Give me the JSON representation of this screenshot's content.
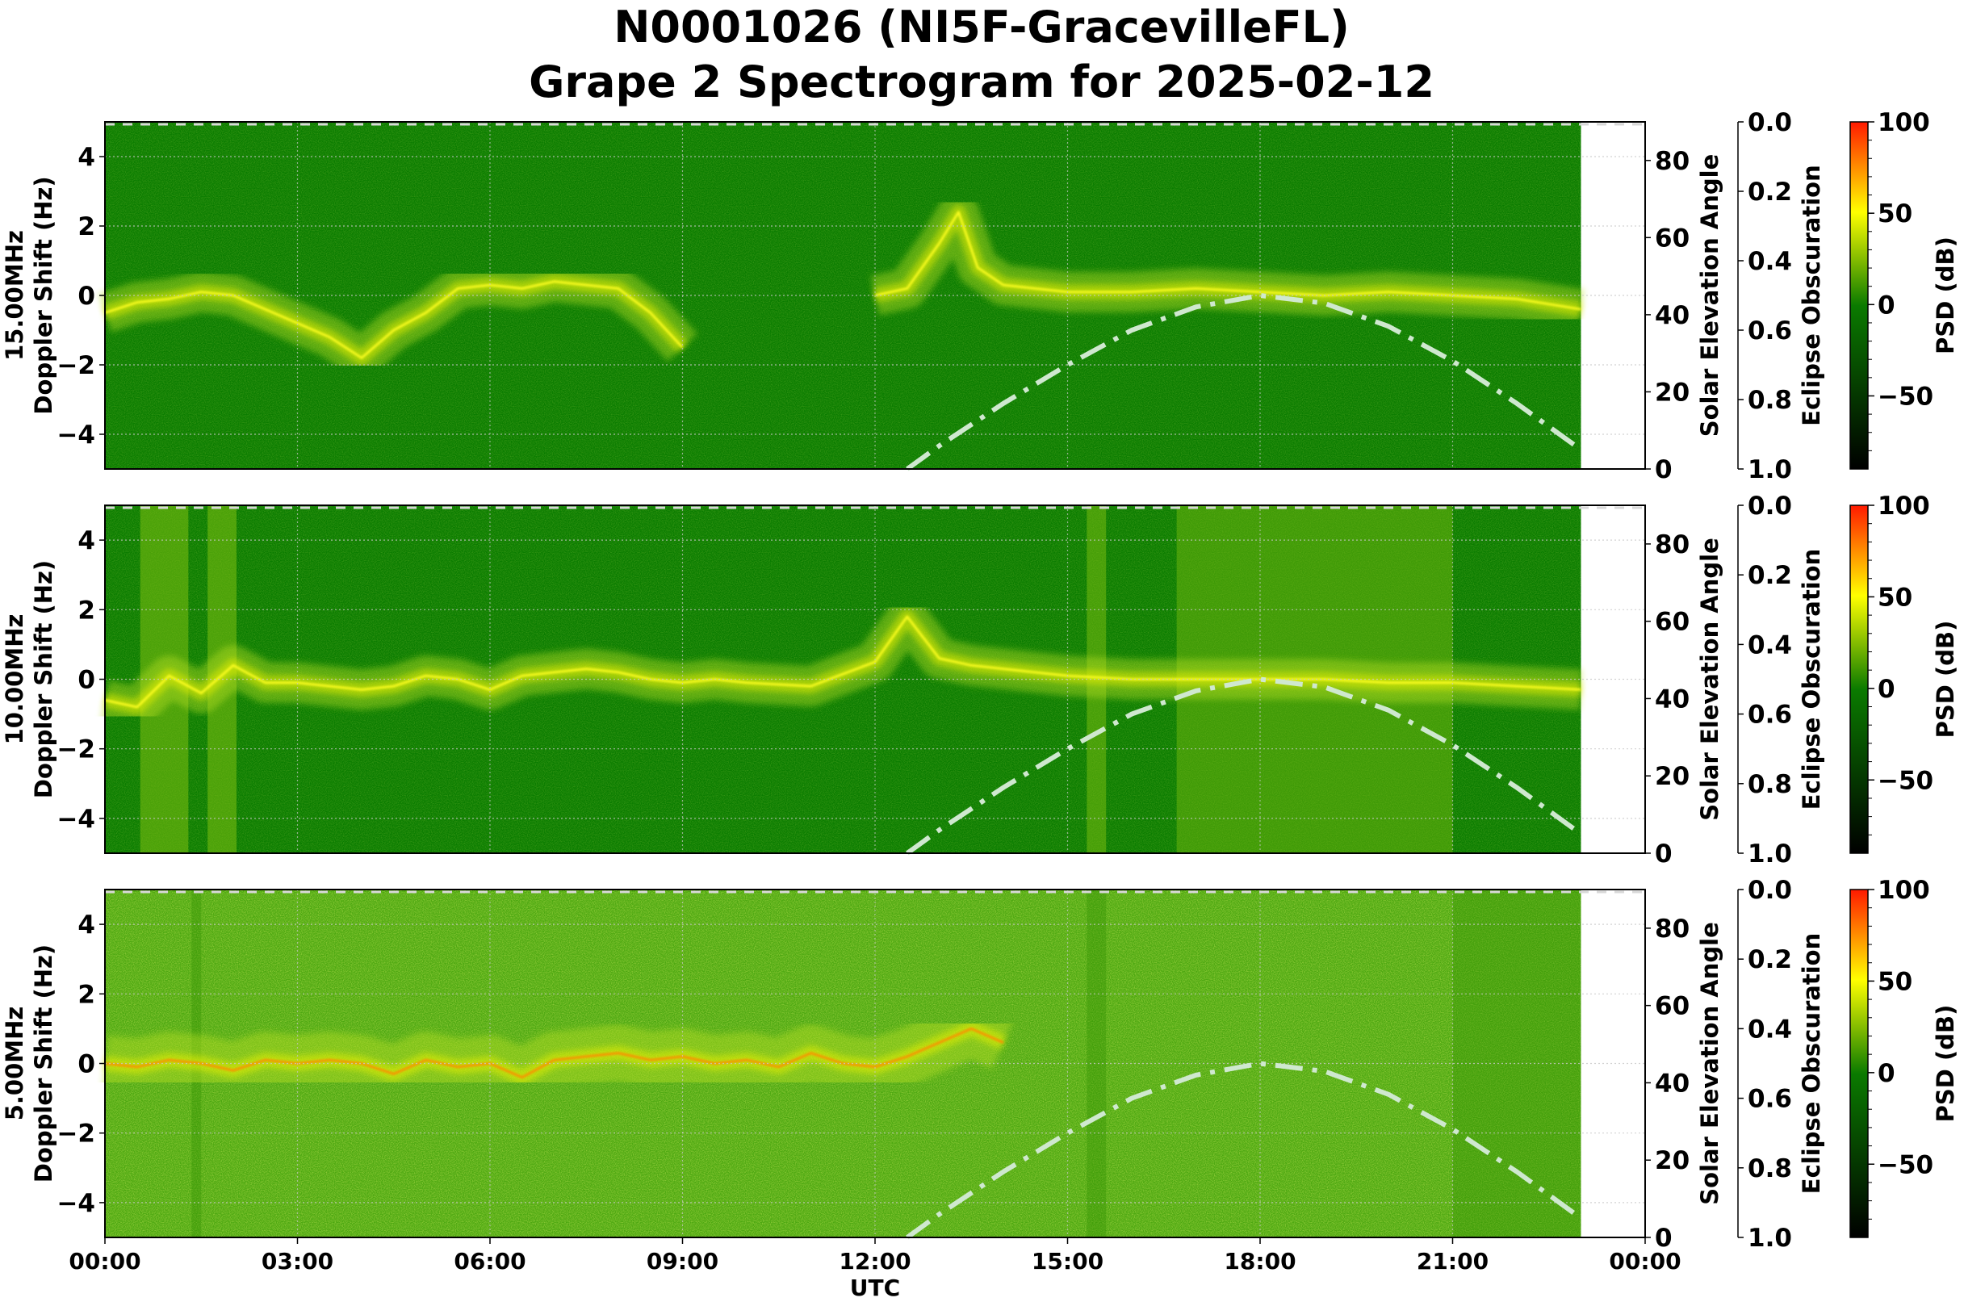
{
  "figure": {
    "title_line1": "N0001026 (NI5F-GracevilleFL)",
    "title_line2": "Grape 2 Spectrogram for 2025-02-12",
    "xlabel": "UTC",
    "x_ticks": [
      "00:00",
      "03:00",
      "06:00",
      "09:00",
      "12:00",
      "15:00",
      "18:00",
      "21:00",
      "00:00"
    ],
    "doppler_ticks": [
      "4",
      "2",
      "0",
      "−2",
      "−4"
    ],
    "solar_ticks": [
      "80",
      "60",
      "40",
      "20",
      "0"
    ],
    "solar_label": "Solar Elevation Angle",
    "eclipse_ticks": [
      "0.0",
      "0.2",
      "0.4",
      "0.6",
      "0.8",
      "1.0"
    ],
    "eclipse_label": "Eclipse Obscuration",
    "colorbar_ticks": [
      "100",
      "50",
      "0",
      "−50"
    ],
    "colorbar_label": "PSD (dB)",
    "colors": {
      "bg_green": "#0a7a00",
      "noise_green": "#4ea80e",
      "yellow": "#ffff00",
      "red": "#ff2000",
      "solar_curve": "#cfe8cf"
    }
  },
  "panels": [
    {
      "freq_label": "15.00MHz",
      "ylabel": "Doppler Shift (Hz)"
    },
    {
      "freq_label": "10.00MHz",
      "ylabel": "Doppler Shift (Hz)"
    },
    {
      "freq_label": "5.00MHz",
      "ylabel": "Doppler Shift (Hz)"
    }
  ],
  "chart_data": {
    "type": "heatmap",
    "title": "N0001026 (NI5F-GracevilleFL) Grape 2 Spectrogram for 2025-02-12",
    "xlabel": "UTC",
    "x_range_hours": [
      0,
      24
    ],
    "x_ticks": [
      "00:00",
      "03:00",
      "06:00",
      "09:00",
      "12:00",
      "15:00",
      "18:00",
      "21:00",
      "00:00"
    ],
    "data_end_hour": 23.0,
    "subplots": [
      {
        "frequency": "15.00MHz",
        "ylabel": "Doppler Shift (Hz)",
        "ylim": [
          -5,
          5
        ],
        "y_ticks": [
          -4,
          -2,
          0,
          2,
          4
        ],
        "trace_hours": [
          0,
          0.5,
          1,
          1.5,
          2,
          2.5,
          3,
          3.5,
          4,
          4.5,
          5,
          5.5,
          6,
          6.5,
          7,
          7.5,
          8,
          8.5,
          9,
          9.5,
          10,
          11,
          12,
          12.5,
          13,
          13.3,
          13.6,
          14,
          15,
          16,
          17,
          18,
          19,
          20,
          21,
          22,
          23
        ],
        "trace_doppler": [
          -0.5,
          -0.2,
          -0.1,
          0.1,
          0.0,
          -0.4,
          -0.8,
          -1.2,
          -1.8,
          -1.0,
          -0.5,
          0.2,
          0.3,
          0.2,
          0.4,
          0.3,
          0.2,
          -0.5,
          -1.5,
          null,
          null,
          null,
          0.0,
          0.2,
          1.5,
          2.4,
          0.8,
          0.3,
          0.1,
          0.1,
          0.2,
          0.1,
          0.0,
          0.1,
          0.0,
          -0.1,
          -0.4
        ]
      },
      {
        "frequency": "10.00MHz",
        "ylabel": "Doppler Shift (Hz)",
        "ylim": [
          -5,
          5
        ],
        "y_ticks": [
          -4,
          -2,
          0,
          2,
          4
        ],
        "trace_hours": [
          0,
          0.5,
          1,
          1.5,
          2,
          2.5,
          3,
          3.5,
          4,
          4.5,
          5,
          5.5,
          6,
          6.5,
          7,
          7.5,
          8,
          8.5,
          9,
          9.5,
          10,
          11,
          12,
          12.5,
          13,
          13.5,
          14,
          15,
          16,
          17,
          18,
          19,
          20,
          21,
          22,
          23
        ],
        "trace_doppler": [
          -0.6,
          -0.8,
          0.1,
          -0.4,
          0.4,
          -0.1,
          -0.1,
          -0.2,
          -0.3,
          -0.2,
          0.1,
          0.0,
          -0.3,
          0.1,
          0.2,
          0.3,
          0.2,
          0.0,
          -0.1,
          0.0,
          -0.1,
          -0.2,
          0.5,
          1.8,
          0.6,
          0.4,
          0.3,
          0.1,
          0.0,
          0.0,
          0.0,
          0.0,
          -0.1,
          -0.1,
          -0.2,
          -0.3
        ]
      },
      {
        "frequency": "5.00MHz",
        "ylabel": "Doppler Shift (Hz)",
        "ylim": [
          -5,
          5
        ],
        "y_ticks": [
          -4,
          -2,
          0,
          2,
          4
        ],
        "trace_hours": [
          0,
          0.5,
          1,
          1.5,
          2,
          2.5,
          3,
          3.5,
          4,
          4.5,
          5,
          5.5,
          6,
          6.5,
          7,
          7.5,
          8,
          8.5,
          9,
          9.5,
          10,
          10.5,
          11,
          11.5,
          12,
          12.5,
          13,
          13.5,
          14
        ],
        "trace_doppler": [
          0.0,
          -0.1,
          0.1,
          0.0,
          -0.2,
          0.1,
          0.0,
          0.1,
          0.0,
          -0.3,
          0.1,
          -0.1,
          0.0,
          -0.4,
          0.1,
          0.2,
          0.3,
          0.1,
          0.2,
          0.0,
          0.1,
          -0.1,
          0.3,
          0.0,
          -0.1,
          0.2,
          0.6,
          1.0,
          0.6
        ]
      }
    ],
    "solar_elevation": {
      "axis_label": "Solar Elevation Angle",
      "ylim": [
        0,
        90
      ],
      "y_ticks": [
        0,
        20,
        40,
        60,
        80
      ],
      "style": "dash-dot",
      "hours": [
        12.5,
        13,
        14,
        15,
        16,
        17,
        18,
        19,
        20,
        21,
        22,
        23
      ],
      "degrees": [
        0,
        6,
        17,
        27,
        36,
        42,
        45,
        43,
        37,
        28,
        17,
        5
      ]
    },
    "eclipse_obscuration": {
      "axis_label": "Eclipse Obscuration",
      "ylim": [
        0.0,
        1.0
      ],
      "inverted": true,
      "y_ticks": [
        0.0,
        0.2,
        0.4,
        0.6,
        0.8,
        1.0
      ]
    },
    "colorbar": {
      "label": "PSD (dB)",
      "range": [
        -90,
        100
      ],
      "ticks": [
        -50,
        0,
        50,
        100
      ],
      "colormap": [
        "#000000",
        "#0a7a00",
        "#ffff00",
        "#ff0000"
      ]
    }
  }
}
